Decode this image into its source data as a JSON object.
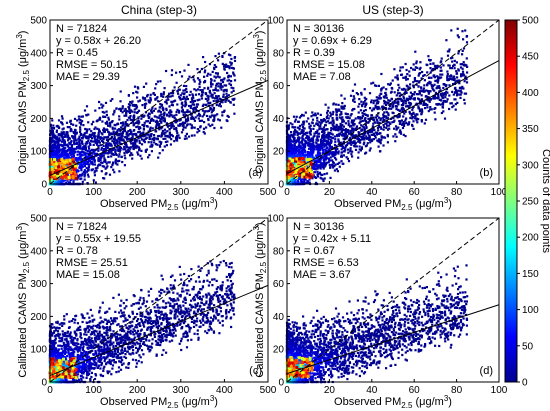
{
  "colors": {
    "colormap": [
      "#00008f",
      "#0000ff",
      "#00ffff",
      "#ffff00",
      "#ff0000",
      "#800000"
    ],
    "fit_line": "#000000",
    "one_to_one_line": "#000000"
  },
  "chart_data": {
    "type": "heatmap",
    "colorbar": {
      "label": "Counts of data points",
      "range": [
        0,
        500
      ],
      "ticks": [
        "0",
        "50",
        "100",
        "150",
        "200",
        "250",
        "300",
        "350",
        "400",
        "450",
        "500"
      ]
    },
    "panels": [
      {
        "id": "a",
        "title": "China (step-3)",
        "label": "(a)",
        "xlabel": "Observed PM2.5 (μg/m3)",
        "ylabel": "Original CAMS PM2.5 (μg/m3)",
        "xlim": [
          0,
          500
        ],
        "ylim": [
          0,
          500
        ],
        "xticks": [
          "0",
          "100",
          "200",
          "300",
          "400",
          "500"
        ],
        "yticks": [
          "0",
          "100",
          "200",
          "300",
          "400",
          "500"
        ],
        "stats": [
          "N = 71824",
          "y = 0.58x + 26.20",
          "R = 0.45",
          "RMSE = 50.15",
          "MAE = 29.39"
        ],
        "fit": {
          "slope": 0.58,
          "intercept": 26.2
        },
        "one_to_one": true
      },
      {
        "id": "b",
        "title": "US (step-3)",
        "label": "(b)",
        "xlabel": "Observed PM2.5 (μg/m3)",
        "ylabel": "Original CAMS PM2.5 (μg/m3)",
        "xlim": [
          0,
          100
        ],
        "ylim": [
          0,
          100
        ],
        "xticks": [
          "0",
          "20",
          "40",
          "60",
          "80",
          "100"
        ],
        "yticks": [
          "0",
          "20",
          "40",
          "60",
          "80",
          "100"
        ],
        "stats": [
          "N = 30136",
          "y = 0.69x + 6.29",
          "R = 0.39",
          "RMSE = 15.08",
          "MAE = 7.08"
        ],
        "fit": {
          "slope": 0.69,
          "intercept": 6.29
        },
        "one_to_one": true
      },
      {
        "id": "c",
        "title": "",
        "label": "(c)",
        "xlabel": "Observed PM2.5 (μg/m3)",
        "ylabel": "Calibrated CAMS PM2.5 (μg/m3)",
        "xlim": [
          0,
          500
        ],
        "ylim": [
          0,
          500
        ],
        "xticks": [
          "0",
          "100",
          "200",
          "300",
          "400",
          "500"
        ],
        "yticks": [
          "0",
          "100",
          "200",
          "300",
          "400",
          "500"
        ],
        "stats": [
          "N = 71824",
          "y = 0.55x + 19.55",
          "R = 0.78",
          "RMSE = 25.51",
          "MAE = 15.08"
        ],
        "fit": {
          "slope": 0.55,
          "intercept": 19.55
        },
        "one_to_one": true
      },
      {
        "id": "d",
        "title": "",
        "label": "(d)",
        "xlabel": "Observed PM2.5 (μg/m3)",
        "ylabel": "Calibrated CAMS PM2.5 (μg/m3)",
        "xlim": [
          0,
          100
        ],
        "ylim": [
          0,
          100
        ],
        "xticks": [
          "0",
          "20",
          "40",
          "60",
          "80",
          "100"
        ],
        "yticks": [
          "0",
          "20",
          "40",
          "60",
          "80",
          "100"
        ],
        "stats": [
          "N = 30136",
          "y = 0.42x + 5.11",
          "R = 0.67",
          "RMSE = 6.53",
          "MAE = 3.67"
        ],
        "fit": {
          "slope": 0.42,
          "intercept": 5.11
        },
        "one_to_one": true
      }
    ]
  }
}
